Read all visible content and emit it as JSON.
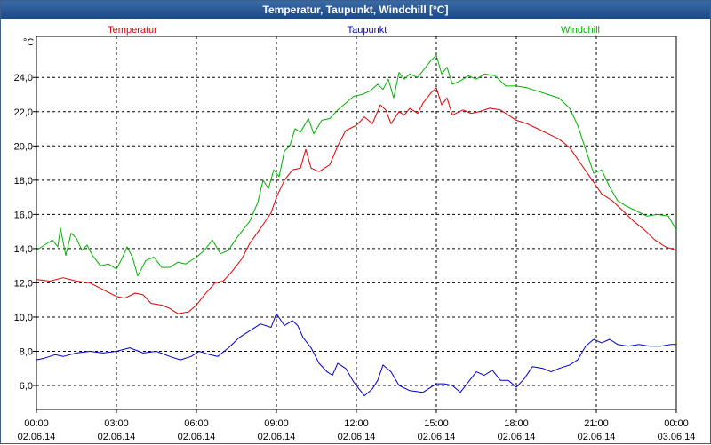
{
  "window": {
    "title": "Temperatur, Taupunkt, Windchill [°C]"
  },
  "chart_data": {
    "type": "line",
    "title": "Temperatur, Taupunkt, Windchill [°C]",
    "ylabel": "°C",
    "ylim": [
      4.6,
      26.4
    ],
    "yticks": [
      6,
      8,
      10,
      12,
      14,
      16,
      18,
      20,
      22,
      24
    ],
    "ytick_labels": [
      "6,0",
      "8,0",
      "10,0",
      "12,0",
      "14,0",
      "16,0",
      "18,0",
      "20,0",
      "22,0",
      "24,0"
    ],
    "xlim": [
      0,
      24
    ],
    "xticks": [
      0,
      3,
      6,
      9,
      12,
      15,
      18,
      21,
      24
    ],
    "xtick_time_labels": [
      "00:00",
      "03:00",
      "06:00",
      "09:00",
      "12:00",
      "15:00",
      "18:00",
      "21:00",
      "00:00"
    ],
    "xtick_date_labels": [
      "02.06.14",
      "02.06.14",
      "02.06.14",
      "02.06.14",
      "02.06.14",
      "02.06.14",
      "02.06.14",
      "02.06.14",
      "03.06.14"
    ],
    "grid": true,
    "legend_position": "top",
    "series": [
      {
        "name": "Temperatur",
        "color": "#e00000",
        "points": [
          [
            0,
            12.2
          ],
          [
            0.5,
            12.1
          ],
          [
            1,
            12.3
          ],
          [
            1.5,
            12.1
          ],
          [
            2,
            12.0
          ],
          [
            2.5,
            11.6
          ],
          [
            3,
            11.2
          ],
          [
            3.3,
            11.1
          ],
          [
            3.7,
            11.4
          ],
          [
            4,
            11.3
          ],
          [
            4.3,
            10.8
          ],
          [
            4.7,
            10.7
          ],
          [
            5,
            10.5
          ],
          [
            5.3,
            10.2
          ],
          [
            5.7,
            10.3
          ],
          [
            6,
            10.7
          ],
          [
            6.3,
            11.3
          ],
          [
            6.7,
            12.0
          ],
          [
            7,
            12.1
          ],
          [
            7.3,
            12.6
          ],
          [
            7.7,
            13.4
          ],
          [
            8,
            14.3
          ],
          [
            8.5,
            15.4
          ],
          [
            8.8,
            16.1
          ],
          [
            9,
            17.0
          ],
          [
            9.3,
            18.0
          ],
          [
            9.6,
            18.6
          ],
          [
            9.9,
            18.7
          ],
          [
            10.1,
            19.8
          ],
          [
            10.3,
            18.7
          ],
          [
            10.6,
            18.5
          ],
          [
            11,
            18.9
          ],
          [
            11.3,
            20.0
          ],
          [
            11.6,
            20.9
          ],
          [
            12,
            21.2
          ],
          [
            12.3,
            21.7
          ],
          [
            12.6,
            21.3
          ],
          [
            12.9,
            22.4
          ],
          [
            13.1,
            22.1
          ],
          [
            13.3,
            21.3
          ],
          [
            13.6,
            22.0
          ],
          [
            13.8,
            21.8
          ],
          [
            14,
            22.2
          ],
          [
            14.3,
            21.9
          ],
          [
            14.5,
            22.5
          ],
          [
            14.8,
            23.1
          ],
          [
            15,
            23.4
          ],
          [
            15.2,
            22.4
          ],
          [
            15.4,
            22.8
          ],
          [
            15.6,
            21.8
          ],
          [
            16,
            22.1
          ],
          [
            16.3,
            21.9
          ],
          [
            16.6,
            22.0
          ],
          [
            17,
            22.2
          ],
          [
            17.4,
            22.1
          ],
          [
            17.8,
            21.7
          ],
          [
            18,
            21.5
          ],
          [
            18.4,
            21.3
          ],
          [
            18.8,
            21.0
          ],
          [
            19.2,
            20.7
          ],
          [
            19.6,
            20.4
          ],
          [
            20,
            19.9
          ],
          [
            20.4,
            19.0
          ],
          [
            20.8,
            18.1
          ],
          [
            21.2,
            17.2
          ],
          [
            21.6,
            16.8
          ],
          [
            22,
            16.2
          ],
          [
            22.4,
            15.6
          ],
          [
            22.8,
            15.1
          ],
          [
            23.2,
            14.5
          ],
          [
            23.6,
            14.1
          ],
          [
            24,
            13.9
          ]
        ]
      },
      {
        "name": "Taupunkt",
        "color": "#0000d0",
        "points": [
          [
            0,
            7.5
          ],
          [
            0.3,
            7.6
          ],
          [
            0.7,
            7.8
          ],
          [
            1,
            7.7
          ],
          [
            1.5,
            7.9
          ],
          [
            2,
            8.0
          ],
          [
            2.5,
            7.9
          ],
          [
            3,
            8.0
          ],
          [
            3.5,
            8.2
          ],
          [
            4,
            7.9
          ],
          [
            4.5,
            8.0
          ],
          [
            5,
            7.7
          ],
          [
            5.4,
            7.5
          ],
          [
            5.8,
            7.7
          ],
          [
            6.1,
            8.0
          ],
          [
            6.5,
            7.8
          ],
          [
            6.8,
            7.7
          ],
          [
            7.2,
            8.2
          ],
          [
            7.6,
            8.8
          ],
          [
            8,
            9.2
          ],
          [
            8.4,
            9.6
          ],
          [
            8.8,
            9.4
          ],
          [
            9,
            10.2
          ],
          [
            9.3,
            9.5
          ],
          [
            9.6,
            9.8
          ],
          [
            9.8,
            9.5
          ],
          [
            10,
            8.8
          ],
          [
            10.3,
            8.2
          ],
          [
            10.6,
            7.3
          ],
          [
            10.9,
            6.8
          ],
          [
            11.1,
            6.6
          ],
          [
            11.3,
            7.3
          ],
          [
            11.6,
            7.0
          ],
          [
            11.9,
            6.2
          ],
          [
            12.1,
            5.8
          ],
          [
            12.3,
            5.4
          ],
          [
            12.6,
            5.8
          ],
          [
            12.8,
            6.3
          ],
          [
            13,
            7.2
          ],
          [
            13.3,
            6.8
          ],
          [
            13.6,
            6.0
          ],
          [
            14,
            5.7
          ],
          [
            14.5,
            5.6
          ],
          [
            15,
            6.1
          ],
          [
            15.3,
            6.1
          ],
          [
            15.6,
            6.0
          ],
          [
            15.9,
            5.6
          ],
          [
            16.2,
            6.2
          ],
          [
            16.5,
            6.8
          ],
          [
            16.8,
            6.6
          ],
          [
            17.1,
            6.9
          ],
          [
            17.4,
            6.3
          ],
          [
            17.7,
            6.3
          ],
          [
            18,
            5.9
          ],
          [
            18.3,
            6.4
          ],
          [
            18.6,
            7.1
          ],
          [
            19,
            7.0
          ],
          [
            19.3,
            6.8
          ],
          [
            19.6,
            7.0
          ],
          [
            20,
            7.2
          ],
          [
            20.3,
            7.5
          ],
          [
            20.6,
            8.3
          ],
          [
            20.9,
            8.7
          ],
          [
            21.2,
            8.5
          ],
          [
            21.5,
            8.7
          ],
          [
            21.8,
            8.4
          ],
          [
            22.2,
            8.3
          ],
          [
            22.6,
            8.4
          ],
          [
            23,
            8.3
          ],
          [
            23.4,
            8.3
          ],
          [
            23.8,
            8.4
          ],
          [
            24,
            8.4
          ]
        ]
      },
      {
        "name": "Windchill",
        "color": "#00b000",
        "points": [
          [
            0,
            13.9
          ],
          [
            0.3,
            14.2
          ],
          [
            0.6,
            14.5
          ],
          [
            0.8,
            14.1
          ],
          [
            0.9,
            15.2
          ],
          [
            1.1,
            13.6
          ],
          [
            1.3,
            14.9
          ],
          [
            1.5,
            14.6
          ],
          [
            1.7,
            13.9
          ],
          [
            1.9,
            14.2
          ],
          [
            2.1,
            13.6
          ],
          [
            2.4,
            13.0
          ],
          [
            2.7,
            13.1
          ],
          [
            3,
            12.8
          ],
          [
            3.2,
            13.4
          ],
          [
            3.4,
            14.1
          ],
          [
            3.6,
            13.5
          ],
          [
            3.8,
            12.4
          ],
          [
            4.1,
            13.3
          ],
          [
            4.4,
            13.5
          ],
          [
            4.7,
            12.9
          ],
          [
            5,
            12.9
          ],
          [
            5.3,
            13.2
          ],
          [
            5.6,
            13.1
          ],
          [
            6,
            13.5
          ],
          [
            6.3,
            13.9
          ],
          [
            6.6,
            14.5
          ],
          [
            6.9,
            13.7
          ],
          [
            7.2,
            13.9
          ],
          [
            7.5,
            14.6
          ],
          [
            7.8,
            15.2
          ],
          [
            8,
            15.6
          ],
          [
            8.3,
            16.7
          ],
          [
            8.5,
            18.0
          ],
          [
            8.7,
            17.5
          ],
          [
            8.9,
            18.6
          ],
          [
            9.1,
            18.2
          ],
          [
            9.3,
            19.7
          ],
          [
            9.5,
            20.0
          ],
          [
            9.7,
            21.0
          ],
          [
            9.9,
            20.8
          ],
          [
            10.2,
            21.6
          ],
          [
            10.4,
            20.7
          ],
          [
            10.7,
            21.5
          ],
          [
            11,
            21.6
          ],
          [
            11.3,
            22.1
          ],
          [
            11.6,
            22.5
          ],
          [
            11.9,
            22.9
          ],
          [
            12.2,
            23.0
          ],
          [
            12.5,
            23.2
          ],
          [
            12.8,
            23.6
          ],
          [
            13,
            23.3
          ],
          [
            13.2,
            23.9
          ],
          [
            13.4,
            22.8
          ],
          [
            13.6,
            24.3
          ],
          [
            13.8,
            23.9
          ],
          [
            14,
            24.2
          ],
          [
            14.3,
            24.0
          ],
          [
            14.6,
            24.6
          ],
          [
            14.8,
            25.0
          ],
          [
            15,
            25.3
          ],
          [
            15.2,
            24.2
          ],
          [
            15.4,
            24.6
          ],
          [
            15.6,
            23.6
          ],
          [
            15.9,
            23.8
          ],
          [
            16.2,
            24.1
          ],
          [
            16.5,
            23.9
          ],
          [
            16.8,
            24.2
          ],
          [
            17.2,
            24.1
          ],
          [
            17.6,
            23.5
          ],
          [
            18,
            23.5
          ],
          [
            18.4,
            23.4
          ],
          [
            18.8,
            23.2
          ],
          [
            19.2,
            23.0
          ],
          [
            19.6,
            22.8
          ],
          [
            20,
            22.2
          ],
          [
            20.3,
            21.2
          ],
          [
            20.6,
            19.8
          ],
          [
            20.9,
            18.4
          ],
          [
            21.2,
            18.6
          ],
          [
            21.5,
            17.6
          ],
          [
            21.8,
            16.8
          ],
          [
            22.1,
            16.5
          ],
          [
            22.5,
            16.2
          ],
          [
            22.9,
            15.9
          ],
          [
            23.3,
            16.0
          ],
          [
            23.7,
            15.9
          ],
          [
            24,
            15.1
          ]
        ]
      }
    ]
  }
}
